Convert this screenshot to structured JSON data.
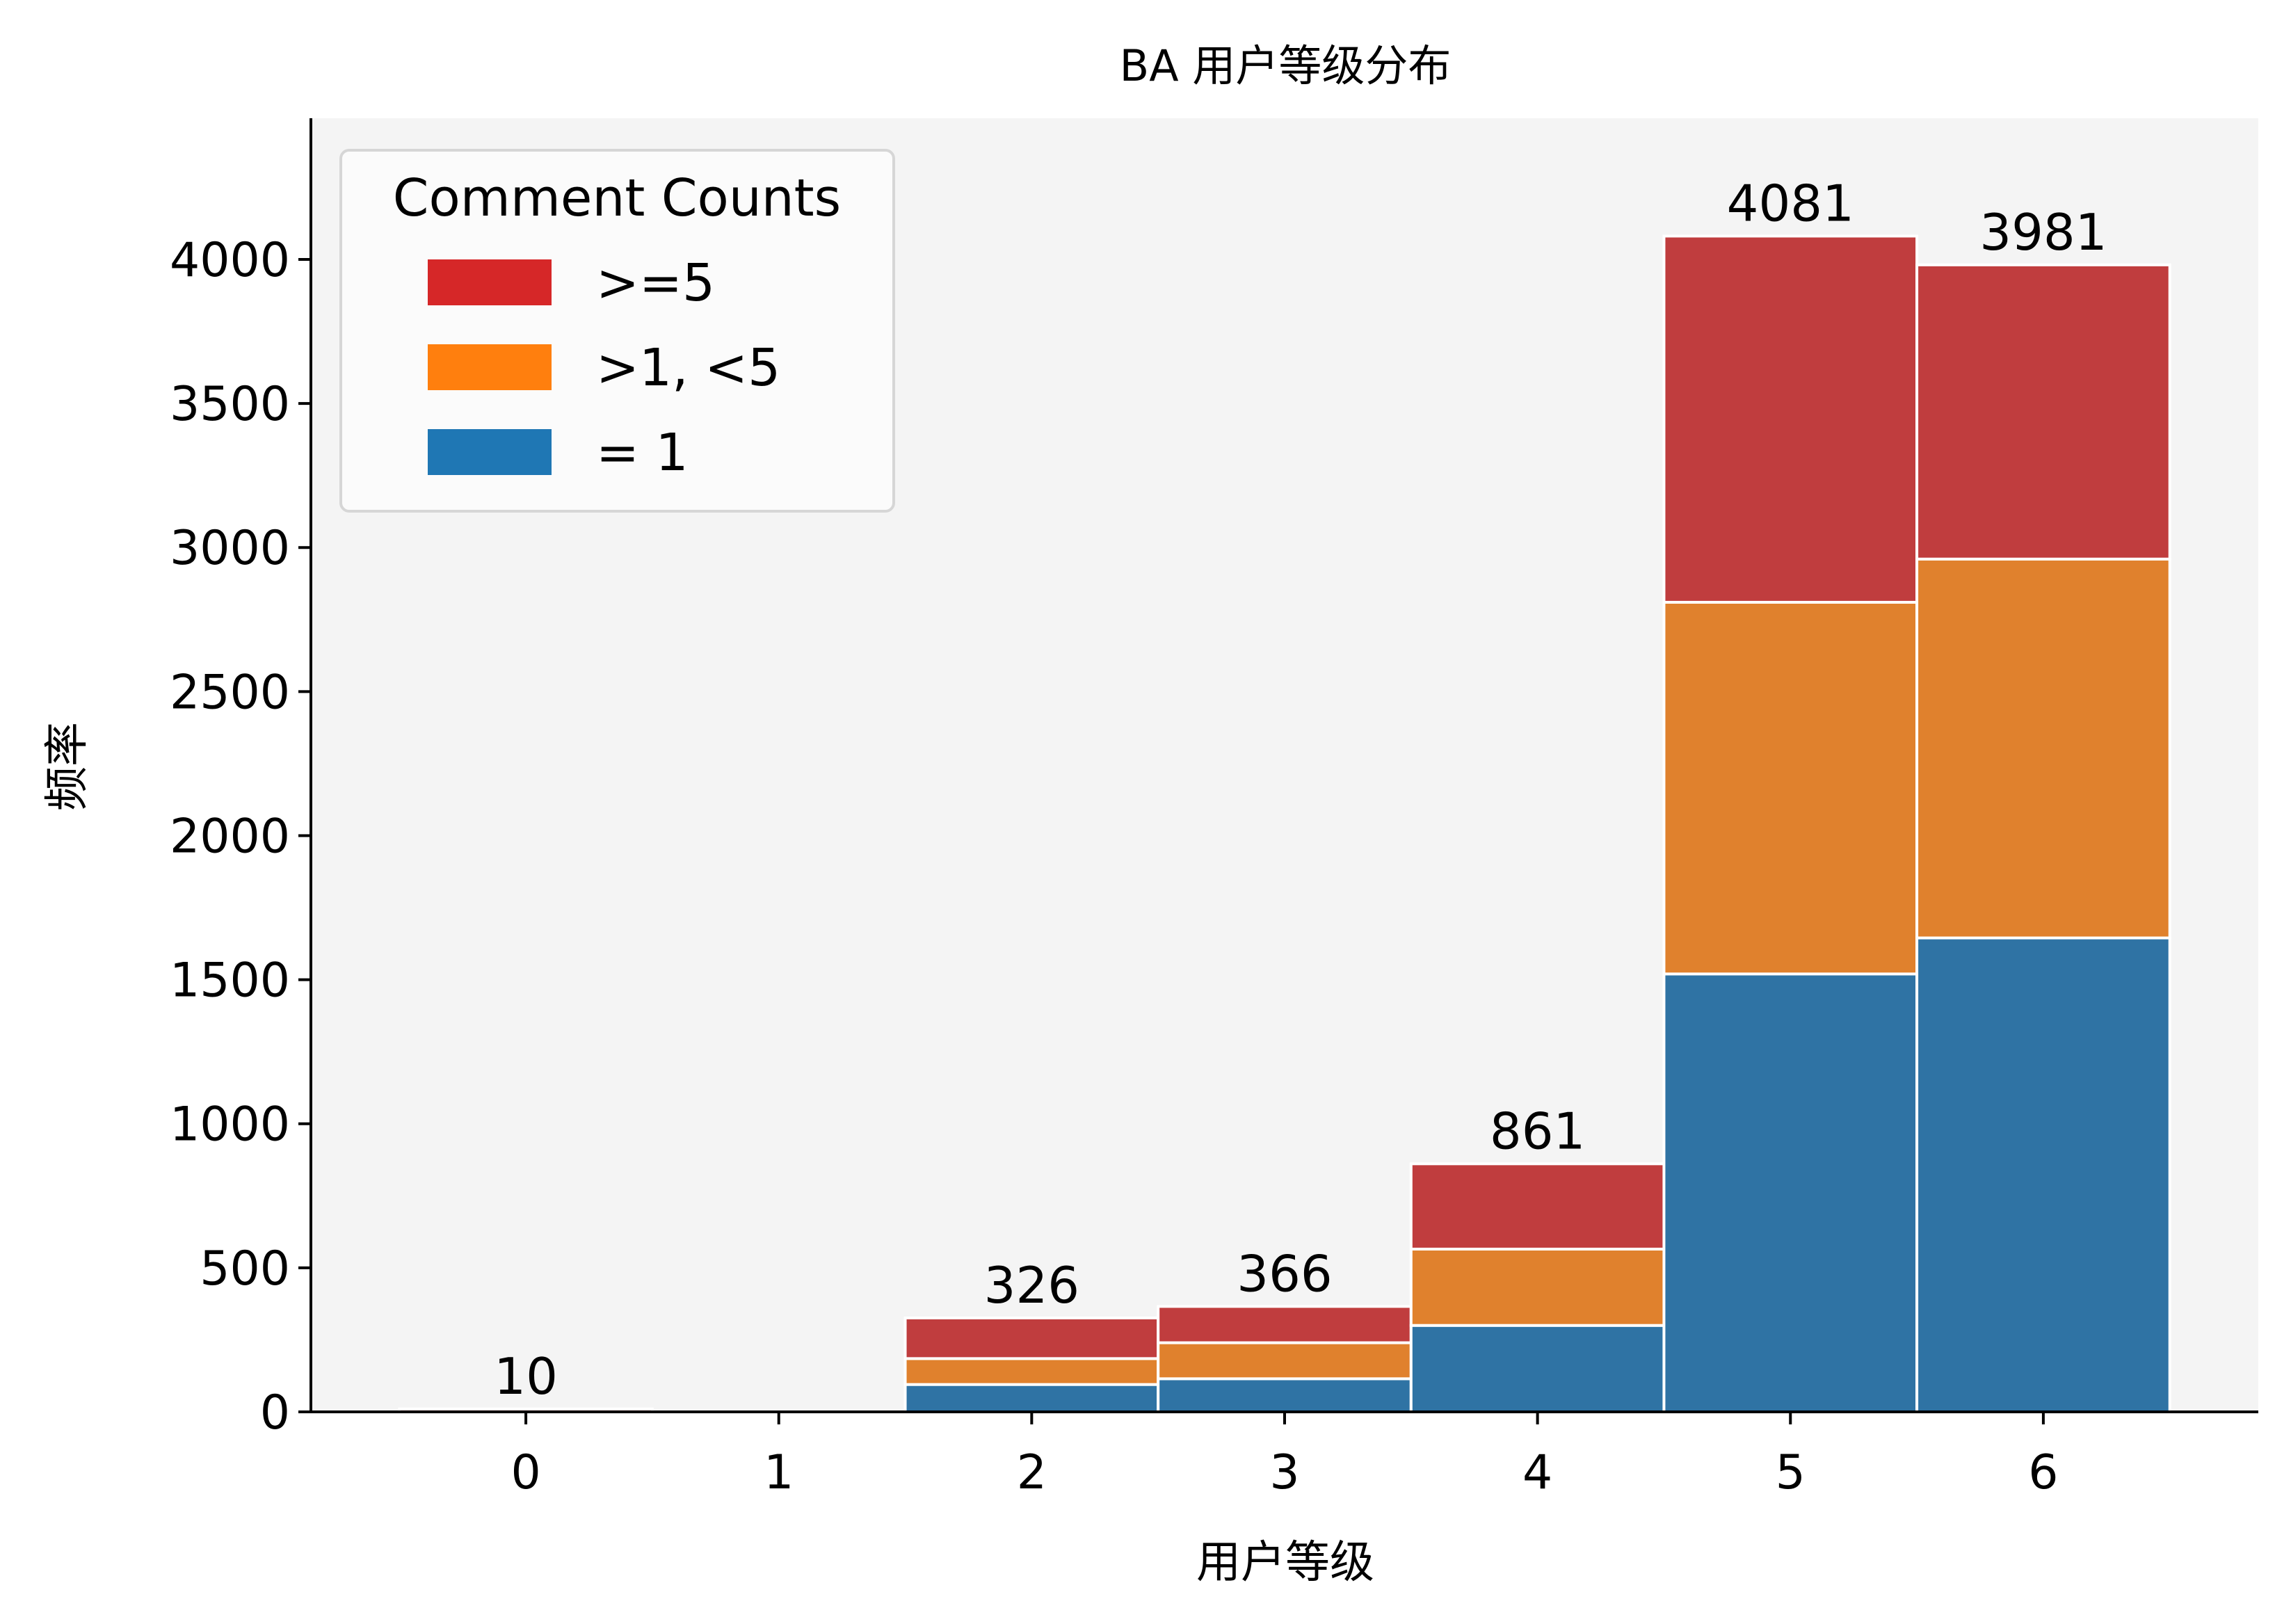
{
  "chart_data": {
    "type": "bar",
    "stacked": true,
    "title": "BA 用户等级分布",
    "xlabel": "用户等级",
    "ylabel": "频率",
    "categories": [
      "0",
      "1",
      "2",
      "3",
      "4",
      "5",
      "6"
    ],
    "series": [
      {
        "name": "= 1",
        "color": "#2f73a4",
        "legend_color": "#1f77b4",
        "values": [
          0,
          0,
          95,
          115,
          300,
          1520,
          1645
        ]
      },
      {
        "name": ">1, <5",
        "color": "#e0812d",
        "legend_color": "#ff7f0e",
        "values": [
          0,
          0,
          90,
          125,
          265,
          1290,
          1315
        ]
      },
      {
        "name": ">=5",
        "color": "#c03d3e",
        "legend_color": "#d62728",
        "values": [
          10,
          0,
          141,
          126,
          296,
          1271,
          1021
        ]
      }
    ],
    "totals": [
      10,
      null,
      326,
      366,
      861,
      4081,
      3981
    ],
    "total_labels": [
      "10",
      "",
      "326",
      "366",
      "861",
      "4081",
      "3981"
    ],
    "y_ticks": [
      0,
      500,
      1000,
      1500,
      2000,
      2500,
      3000,
      3500,
      4000
    ],
    "ylim": [
      0,
      4490
    ],
    "xlim": [
      -0.85,
      6.85
    ],
    "legend": {
      "title": "Comment Counts",
      "placement": "top-left",
      "order": [
        ">=5",
        ">1, <5",
        "= 1"
      ]
    },
    "plot_background": "#f4f4f4",
    "grid": false
  }
}
